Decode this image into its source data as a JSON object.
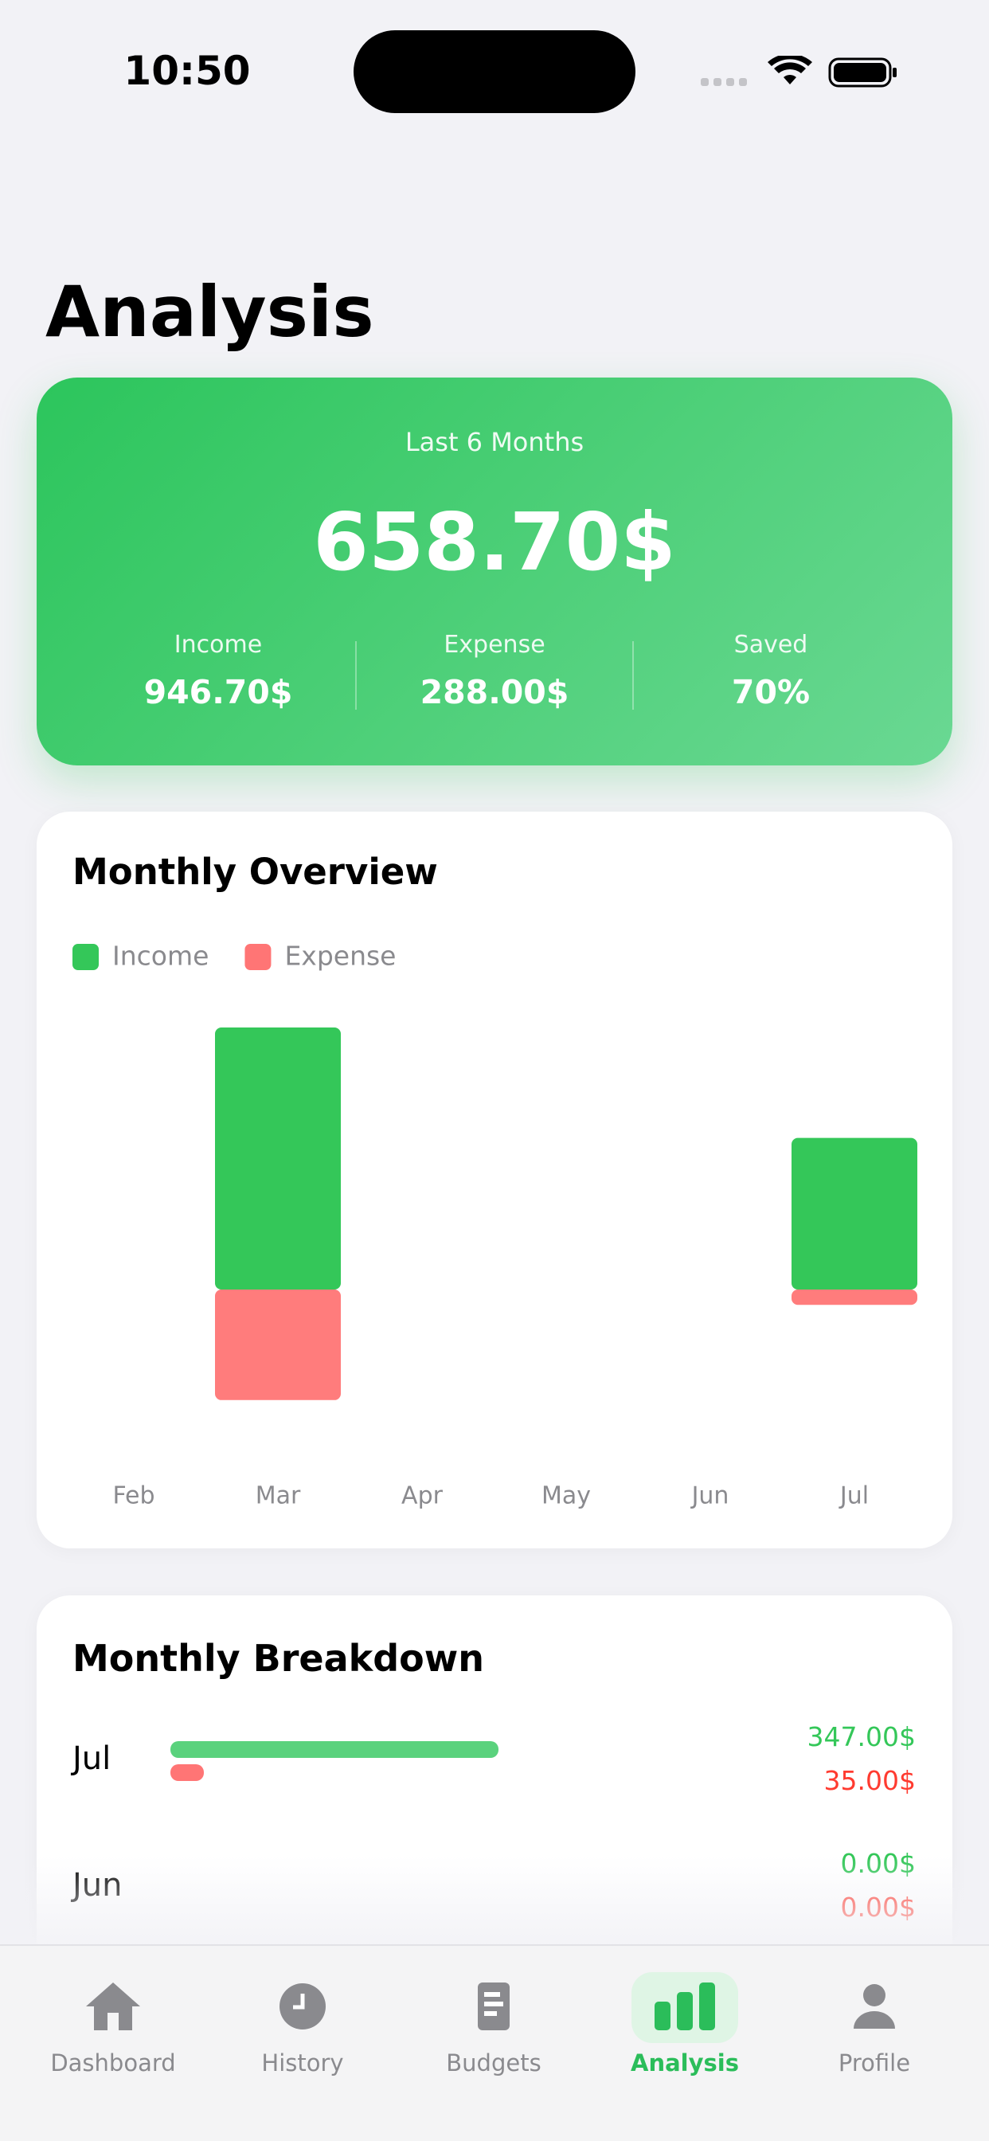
{
  "status_bar": {
    "time": "10:50"
  },
  "header": {
    "title": "Analysis"
  },
  "summary": {
    "period": "Last 6 Months",
    "total": "658.70$",
    "stats": [
      {
        "label": "Income",
        "value": "946.70$"
      },
      {
        "label": "Expense",
        "value": "288.00$"
      },
      {
        "label": "Saved",
        "value": "70%"
      }
    ]
  },
  "chart_data": {
    "type": "bar",
    "title": "Monthly Overview",
    "categories": [
      "Feb",
      "Mar",
      "Apr",
      "May",
      "Jun",
      "Jul"
    ],
    "series": [
      {
        "name": "Income",
        "color": "#34c759",
        "values": [
          0,
          599.7,
          0,
          0,
          0,
          347
        ]
      },
      {
        "name": "Expense",
        "color": "#ff7575",
        "values": [
          0,
          253,
          0,
          0,
          0,
          35
        ]
      }
    ],
    "legend": "top-left",
    "grid": false
  },
  "breakdown": {
    "title": "Monthly Breakdown",
    "rows": [
      {
        "month": "Jul",
        "income": 347,
        "income_label": "347.00$",
        "expense": 35,
        "expense_label": "35.00$"
      },
      {
        "month": "Jun",
        "income": 0,
        "income_label": "0.00$",
        "expense": 0,
        "expense_label": "0.00$"
      }
    ]
  },
  "tabs": [
    {
      "label": "Dashboard"
    },
    {
      "label": "History"
    },
    {
      "label": "Budgets"
    },
    {
      "label": "Analysis",
      "active": true
    },
    {
      "label": "Profile"
    }
  ]
}
